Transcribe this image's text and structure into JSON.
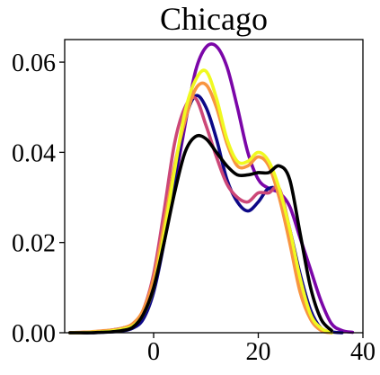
{
  "chart_data": {
    "type": "line",
    "title": "Chicago",
    "xlabel": "",
    "ylabel": "",
    "xlim": [
      -17,
      40
    ],
    "ylim": [
      0,
      0.065
    ],
    "xticks": [
      0,
      20,
      40
    ],
    "xtick_labels": [
      "0",
      "20",
      "40"
    ],
    "yticks": [
      0.0,
      0.02,
      0.04,
      0.06
    ],
    "ytick_labels": [
      "0.00",
      "0.02",
      "0.04",
      "0.06"
    ],
    "grid": false,
    "legend": "none",
    "series": [
      {
        "color": "#7b06a8",
        "x": [
          -16,
          -14,
          -12,
          -10,
          -8,
          -6,
          -4,
          -2,
          0,
          2,
          4,
          6,
          8,
          10,
          12,
          14,
          16,
          18,
          20,
          22,
          24,
          26,
          28,
          30,
          32,
          34,
          36,
          38
        ],
        "y": [
          0,
          0,
          0.0001,
          0.0003,
          0.0006,
          0.001,
          0.0018,
          0.004,
          0.011,
          0.021,
          0.033,
          0.046,
          0.058,
          0.0633,
          0.0635,
          0.059,
          0.05,
          0.04,
          0.034,
          0.032,
          0.031,
          0.028,
          0.021,
          0.014,
          0.007,
          0.002,
          0.0005,
          0.0001
        ]
      },
      {
        "color": "#0d0887",
        "x": [
          -16,
          -14,
          -12,
          -10,
          -8,
          -6,
          -4,
          -2,
          0,
          2,
          4,
          6,
          8,
          10,
          12,
          14,
          16,
          18,
          20,
          22,
          24,
          26,
          28,
          30,
          32,
          34,
          36
        ],
        "y": [
          0,
          0,
          0,
          0.0001,
          0.0002,
          0.0004,
          0.001,
          0.003,
          0.009,
          0.02,
          0.034,
          0.047,
          0.0525,
          0.05,
          0.043,
          0.034,
          0.029,
          0.027,
          0.029,
          0.032,
          0.031,
          0.023,
          0.013,
          0.005,
          0.001,
          0.0002,
          0
        ]
      },
      {
        "color": "#cc4778",
        "x": [
          -16,
          -14,
          -12,
          -10,
          -8,
          -6,
          -4,
          -2,
          0,
          2,
          4,
          6,
          8,
          10,
          12,
          14,
          16,
          18,
          20,
          22,
          24,
          26,
          28,
          30,
          32,
          34
        ],
        "y": [
          0,
          0,
          0.0001,
          0.0002,
          0.0004,
          0.0008,
          0.0015,
          0.005,
          0.013,
          0.027,
          0.042,
          0.05,
          0.052,
          0.046,
          0.039,
          0.033,
          0.03,
          0.029,
          0.031,
          0.031,
          0.032,
          0.023,
          0.012,
          0.004,
          0.001,
          0
        ]
      },
      {
        "color": "#f89540",
        "x": [
          -16,
          -14,
          -12,
          -10,
          -8,
          -6,
          -4,
          -2,
          0,
          2,
          4,
          6,
          8,
          10,
          12,
          14,
          16,
          18,
          20,
          22,
          24,
          26,
          28,
          30,
          32,
          34
        ],
        "y": [
          0,
          0.0001,
          0.0002,
          0.0004,
          0.0006,
          0.001,
          0.002,
          0.005,
          0.012,
          0.024,
          0.037,
          0.047,
          0.054,
          0.055,
          0.05,
          0.042,
          0.037,
          0.037,
          0.039,
          0.037,
          0.03,
          0.02,
          0.009,
          0.003,
          0.0005,
          0
        ]
      },
      {
        "color": "#f0f921",
        "x": [
          -16,
          -14,
          -12,
          -10,
          -8,
          -6,
          -4,
          -2,
          0,
          2,
          4,
          6,
          8,
          10,
          12,
          14,
          16,
          18,
          20,
          22,
          24,
          26,
          28,
          30,
          32,
          34
        ],
        "y": [
          0,
          0,
          0.0001,
          0.0002,
          0.0004,
          0.0008,
          0.0015,
          0.004,
          0.01,
          0.022,
          0.036,
          0.049,
          0.056,
          0.058,
          0.052,
          0.043,
          0.038,
          0.038,
          0.04,
          0.038,
          0.032,
          0.023,
          0.012,
          0.004,
          0.001,
          0
        ]
      },
      {
        "color": "#000000",
        "x": [
          -16,
          -14,
          -12,
          -10,
          -8,
          -6,
          -4,
          -2,
          0,
          2,
          4,
          6,
          8,
          10,
          12,
          14,
          16,
          18,
          20,
          22,
          24,
          26,
          28,
          30,
          32,
          34
        ],
        "y": [
          0,
          0,
          0,
          0.0001,
          0.0002,
          0.0005,
          0.0012,
          0.004,
          0.01,
          0.02,
          0.031,
          0.04,
          0.0435,
          0.043,
          0.04,
          0.037,
          0.035,
          0.035,
          0.0355,
          0.0355,
          0.037,
          0.034,
          0.022,
          0.01,
          0.003,
          0.0005
        ]
      }
    ]
  }
}
